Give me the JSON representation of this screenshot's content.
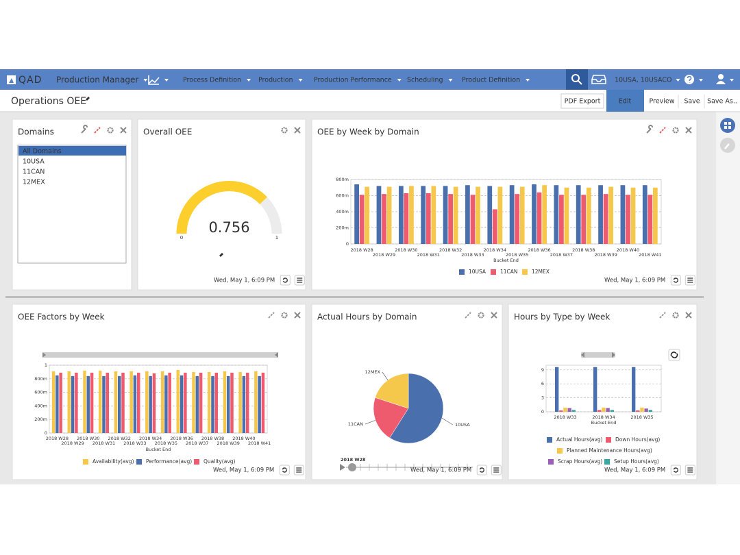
{
  "nav": {
    "logo": "QAD",
    "app": "Production Manager",
    "menus": [
      "Process Definition",
      "Production",
      "Production Performance",
      "Scheduling",
      "Product Definition"
    ],
    "site": "10USA, 10USACO"
  },
  "header": {
    "title": "Operations OEE",
    "buttons": [
      "PDF Export",
      "Edit",
      "Preview",
      "Save",
      "Save As.."
    ]
  },
  "domains": {
    "title": "Domains",
    "items": [
      "All Domains",
      "10USA",
      "11CAN",
      "12MEX"
    ]
  },
  "gauge": {
    "title": "Overall OEE",
    "value": 0.756,
    "min": 0,
    "max": 1,
    "timestamp": "Wed, May 1, 6:09 PM"
  },
  "oee_by_week": {
    "type": "bar",
    "title": "OEE by Week by Domain",
    "x_label": "Bucket End",
    "categories": [
      "2018 W28",
      "2018 W29",
      "2018 W30",
      "2018 W31",
      "2018 W32",
      "2018 W33",
      "2018 W34",
      "2018 W35",
      "2018 W36",
      "2018 W37",
      "2018 W38",
      "2018 W39",
      "2018 W40",
      "2018 W41"
    ],
    "series": [
      {
        "name": "10USA",
        "color": "#4a6fad",
        "values": [
          0.74,
          0.72,
          0.72,
          0.72,
          0.72,
          0.73,
          0.72,
          0.73,
          0.74,
          0.73,
          0.73,
          0.73,
          0.73,
          0.73
        ]
      },
      {
        "name": "11CAN",
        "color": "#ee5b6e",
        "values": [
          0.61,
          0.62,
          0.63,
          0.63,
          0.62,
          0.61,
          0.43,
          0.62,
          0.64,
          0.61,
          0.61,
          0.62,
          0.61,
          0.61
        ]
      },
      {
        "name": "12MEX",
        "color": "#f5c84c",
        "values": [
          0.71,
          0.71,
          0.72,
          0.72,
          0.71,
          0.71,
          0.71,
          0.71,
          0.73,
          0.7,
          0.7,
          0.71,
          0.7,
          0.7
        ]
      }
    ],
    "ylim": [
      0,
      0.8
    ],
    "yticks": [
      0,
      {
        "value": 0.2,
        "label": "200m"
      },
      {
        "value": 0.4,
        "label": "400m"
      },
      {
        "value": 0.6,
        "label": "600m"
      },
      {
        "value": 0.8,
        "label": "800m"
      }
    ],
    "grid": true,
    "timestamp": "Wed, May 1, 6:09 PM"
  },
  "oee_factors": {
    "type": "bar",
    "title": "OEE Factors by Week",
    "x_label": "Bucket End",
    "categories": [
      "2018 W28",
      "2018 W29",
      "2018 W30",
      "2018 W31",
      "2018 W32",
      "2018 W33",
      "2018 W34",
      "2018 W35",
      "2018 W36",
      "2018 W37",
      "2018 W38",
      "2018 W39",
      "2018 W40",
      "2018 W41"
    ],
    "series": [
      {
        "name": "Availability(avg)",
        "color": "#f5c84c",
        "values": [
          0.91,
          0.91,
          0.92,
          0.92,
          0.91,
          0.91,
          0.91,
          0.91,
          0.93,
          0.9,
          0.9,
          0.91,
          0.9,
          0.91
        ]
      },
      {
        "name": "Performance(avg)",
        "color": "#4a6fad",
        "values": [
          0.85,
          0.84,
          0.84,
          0.84,
          0.84,
          0.85,
          0.84,
          0.85,
          0.85,
          0.84,
          0.84,
          0.84,
          0.84,
          0.84
        ]
      },
      {
        "name": "Quality(avg)",
        "color": "#ee5b6e",
        "values": [
          0.89,
          0.89,
          0.89,
          0.89,
          0.89,
          0.89,
          0.88,
          0.89,
          0.89,
          0.89,
          0.89,
          0.89,
          0.89,
          0.89
        ]
      }
    ],
    "ylim": [
      0,
      1
    ],
    "yticks": [
      0,
      {
        "value": 0.2,
        "label": "200m"
      },
      {
        "value": 0.4,
        "label": "400m"
      },
      {
        "value": 0.6,
        "label": "600m"
      },
      {
        "value": 0.8,
        "label": "800m"
      },
      1
    ],
    "grid": true,
    "timestamp": "Wed, May 1, 6:09 PM"
  },
  "actual_hours": {
    "type": "pie",
    "title": "Actual Hours by Domain",
    "categories": [
      "10USA",
      "11CAN",
      "12MEX"
    ],
    "values": [
      59,
      21,
      20
    ],
    "colors": [
      "#4a6fad",
      "#ee5b6e",
      "#f5c84c"
    ],
    "slider_label": "2018 W28",
    "timestamp": "Wed, May 1, 6:09 PM"
  },
  "hours_by_type": {
    "type": "bar",
    "title": "Hours by Type by Week",
    "x_label": "Bucket End",
    "categories": [
      "2018 W33",
      "2018 W34",
      "2018 W35"
    ],
    "series": [
      {
        "name": "Actual Hours(avg)",
        "color": "#4a6fad",
        "values": [
          9.6,
          9.6,
          9.6
        ]
      },
      {
        "name": "Down Hours(avg)",
        "color": "#ee5b6e",
        "values": [
          0.3,
          0.4,
          0.3
        ]
      },
      {
        "name": "Planned Maintenance Hours(avg)",
        "color": "#f5c84c",
        "values": [
          0.9,
          0.9,
          0.9
        ]
      },
      {
        "name": "Scrap Hours(avg)",
        "color": "#9b5fb5",
        "values": [
          0.8,
          0.8,
          0.7
        ]
      },
      {
        "name": "Setup Hours(avg)",
        "color": "#3aa6a0",
        "values": [
          0.4,
          0.4,
          0.4
        ]
      }
    ],
    "ylim": [
      0,
      10
    ],
    "yticks": [
      0,
      3,
      6,
      9
    ],
    "grid": true,
    "timestamp": "Wed, May 1, 6:09 PM"
  }
}
